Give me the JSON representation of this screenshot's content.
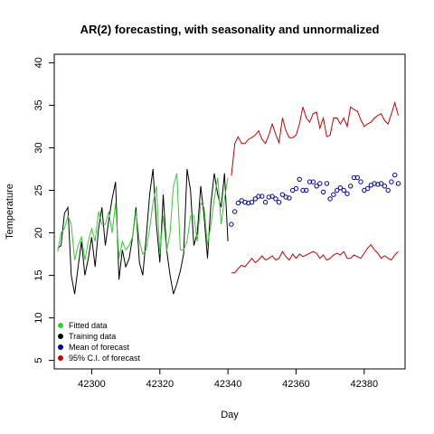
{
  "chart_data": {
    "type": "line",
    "title": "AR(2) forecasting, with seasonality and unnormalized",
    "xlabel": "Day",
    "ylabel": "Temperature",
    "xlim": [
      42289,
      42392
    ],
    "ylim": [
      4,
      41
    ],
    "xticks": [
      42300,
      42320,
      42340,
      42360,
      42380
    ],
    "yticks": [
      5,
      10,
      15,
      20,
      25,
      30,
      35,
      40
    ],
    "grid": false,
    "legend": {
      "placement": "bottom-left"
    },
    "series": [
      {
        "name": "Training data",
        "color": "#000000",
        "style": "line",
        "x": [
          42290,
          42291,
          42292,
          42293,
          42294,
          42295,
          42296,
          42297,
          42298,
          42299,
          42300,
          42301,
          42302,
          42303,
          42304,
          42305,
          42306,
          42307,
          42308,
          42309,
          42310,
          42311,
          42312,
          42313,
          42314,
          42315,
          42316,
          42317,
          42318,
          42319,
          42320,
          42321,
          42322,
          42323,
          42324,
          42325,
          42326,
          42327,
          42328,
          42329,
          42330,
          42331,
          42332,
          42333,
          42334,
          42335,
          42336,
          42337,
          42338,
          42339,
          42340
        ],
        "y": [
          18.2,
          18.5,
          22.3,
          23.0,
          15.0,
          12.8,
          16.0,
          19.0,
          15.0,
          17.0,
          19.5,
          16.0,
          20.5,
          23.0,
          18.5,
          21.5,
          24.0,
          26.0,
          14.5,
          18.0,
          16.0,
          17.0,
          19.5,
          23.0,
          16.5,
          15.0,
          19.5,
          24.5,
          27.5,
          21.0,
          16.5,
          24.5,
          18.0,
          15.0,
          12.8,
          14.0,
          15.5,
          17.5,
          27.5,
          25.0,
          18.5,
          20.0,
          25.5,
          22.0,
          17.0,
          23.5,
          27.0,
          24.5,
          23.0,
          27.0,
          19.0
        ]
      },
      {
        "name": "Fitted data",
        "color": "#33cc33",
        "style": "line",
        "x": [
          42290,
          42291,
          42292,
          42293,
          42294,
          42295,
          42296,
          42297,
          42298,
          42299,
          42300,
          42301,
          42302,
          42303,
          42304,
          42305,
          42306,
          42307,
          42308,
          42309,
          42310,
          42311,
          42312,
          42313,
          42314,
          42315,
          42316,
          42317,
          42318,
          42319,
          42320,
          42321,
          42322,
          42323,
          42324,
          42325,
          42326,
          42327,
          42328,
          42329,
          42330,
          42331,
          42332,
          42333,
          42334,
          42335,
          42336,
          42337,
          42338,
          42339,
          42340
        ],
        "y": [
          17.8,
          20.0,
          20.5,
          22.0,
          21.0,
          16.8,
          18.5,
          19.5,
          16.8,
          19.0,
          20.5,
          19.0,
          22.5,
          21.0,
          21.0,
          22.5,
          20.0,
          23.5,
          17.0,
          19.0,
          18.0,
          18.5,
          19.5,
          22.5,
          19.0,
          17.5,
          18.0,
          20.5,
          23.5,
          25.5,
          17.5,
          22.0,
          17.8,
          20.0,
          25.5,
          27.0,
          18.0,
          18.0,
          19.0,
          22.0,
          22.0,
          19.0,
          23.5,
          23.0,
          18.5,
          21.0,
          24.0,
          26.5,
          21.0,
          24.0,
          26.5
        ]
      },
      {
        "name": "Mean of forecast",
        "color": "#0000aa",
        "style": "points",
        "x": [
          42341,
          42342,
          42343,
          42344,
          42345,
          42346,
          42347,
          42348,
          42349,
          42350,
          42351,
          42352,
          42353,
          42354,
          42355,
          42356,
          42357,
          42358,
          42359,
          42360,
          42361,
          42362,
          42363,
          42364,
          42365,
          42366,
          42367,
          42368,
          42369,
          42370,
          42371,
          42372,
          42373,
          42374,
          42375,
          42376,
          42377,
          42378,
          42379,
          42380,
          42381,
          42382,
          42383,
          42384,
          42385,
          42386,
          42387,
          42388,
          42389,
          42390
        ],
        "y": [
          21.0,
          22.5,
          23.5,
          23.8,
          23.6,
          23.5,
          23.6,
          24.0,
          24.3,
          24.3,
          23.6,
          24.2,
          24.3,
          24.0,
          23.6,
          24.5,
          24.2,
          24.1,
          25.0,
          25.2,
          26.3,
          25.0,
          25.0,
          26.0,
          26.0,
          25.5,
          25.8,
          24.8,
          25.8,
          24.0,
          24.5,
          25.0,
          25.3,
          25.0,
          24.6,
          25.5,
          26.5,
          26.5,
          26.0,
          25.0,
          25.2,
          25.6,
          25.8,
          25.7,
          25.8,
          25.5,
          25.0,
          26.0,
          26.8,
          25.8
        ]
      },
      {
        "name": "95% C.I. of forecast",
        "color": "#cc0000",
        "style": "line",
        "x": [
          42341,
          42342,
          42343,
          42344,
          42345,
          42346,
          42347,
          42348,
          42349,
          42350,
          42351,
          42352,
          42353,
          42354,
          42355,
          42356,
          42357,
          42358,
          42359,
          42360,
          42361,
          42362,
          42363,
          42364,
          42365,
          42366,
          42367,
          42368,
          42369,
          42370,
          42371,
          42372,
          42373,
          42374,
          42375,
          42376,
          42377,
          42378,
          42379,
          42380,
          42381,
          42382,
          42383,
          42384,
          42385,
          42386,
          42387,
          42388,
          42389,
          42390
        ],
        "y": [
          26.7,
          30.5,
          31.3,
          30.5,
          30.5,
          31.0,
          31.2,
          31.5,
          32.0,
          31.0,
          30.5,
          31.5,
          32.8,
          31.6,
          30.6,
          33.5,
          32.0,
          31.2,
          31.2,
          31.5,
          32.8,
          34.8,
          33.5,
          33.0,
          34.0,
          34.2,
          32.3,
          33.5,
          31.3,
          31.5,
          33.5,
          33.5,
          32.8,
          33.5,
          32.5,
          34.8,
          34.5,
          34.3,
          33.3,
          32.5,
          32.8,
          33.0,
          33.5,
          33.8,
          34.0,
          33.2,
          32.8,
          34.0,
          35.3,
          33.8
        ],
        "lower": [
          15.3,
          15.3,
          15.8,
          16.2,
          16.0,
          16.5,
          17.0,
          16.5,
          16.8,
          17.3,
          16.8,
          17.0,
          17.3,
          16.8,
          17.0,
          17.8,
          17.2,
          16.8,
          17.5,
          17.0,
          17.5,
          17.2,
          17.4,
          17.6,
          17.8,
          17.6,
          17.0,
          17.4,
          16.8,
          17.0,
          17.4,
          17.6,
          17.4,
          17.8,
          17.0,
          17.0,
          17.4,
          17.2,
          17.0,
          17.6,
          18.2,
          18.6,
          18.0,
          17.6,
          17.0,
          17.3,
          17.0,
          16.8,
          17.4,
          17.8
        ]
      }
    ]
  }
}
